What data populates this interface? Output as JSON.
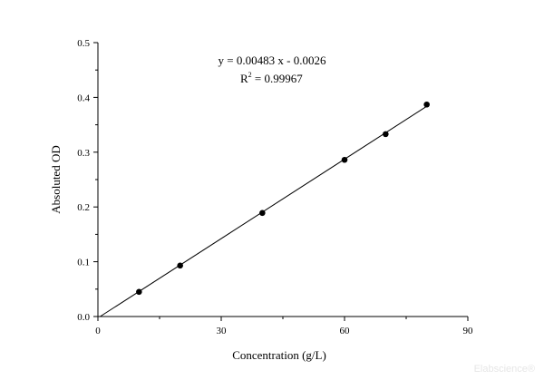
{
  "chart_data": {
    "type": "scatter",
    "title": "",
    "xlabel": "Concentration (g/L)",
    "ylabel": "Absoluted OD",
    "xlim": [
      0,
      90
    ],
    "ylim": [
      0,
      0.5
    ],
    "x_ticks": [
      0,
      30,
      60,
      90
    ],
    "x_tick_labels": [
      "0",
      "30",
      "60",
      "90"
    ],
    "y_ticks": [
      0,
      0.1,
      0.2,
      0.3,
      0.4,
      0.5
    ],
    "y_tick_labels": [
      "0.0",
      "0.1",
      "0.2",
      "0.3",
      "0.4",
      "0.5"
    ],
    "grid": false,
    "legend": "none",
    "series": [
      {
        "x": [
          10,
          20,
          40,
          60,
          70,
          80
        ],
        "y": [
          0.045,
          0.093,
          0.189,
          0.286,
          0.333,
          0.387
        ],
        "color": "#000000"
      }
    ],
    "fit": {
      "slope": 0.00483,
      "intercept": -0.0026,
      "x_range": [
        0,
        80
      ],
      "equation_text": "y = 0.00483 x - 0.0026",
      "r2_base": "R",
      "r2_sup": "2",
      "r2_value": " = 0.99967",
      "color": "#000000"
    }
  },
  "watermark": {
    "text": "Elabscience®"
  }
}
